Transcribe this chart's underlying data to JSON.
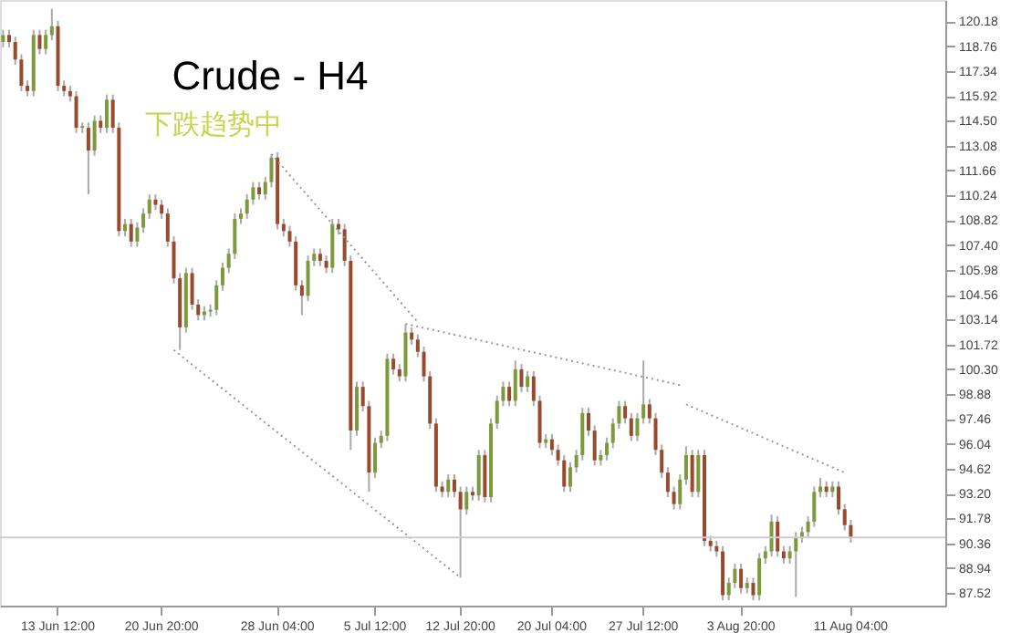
{
  "chart_data": {
    "type": "candlestick",
    "title": "Crude - H4",
    "subtitle": "下跌趋势中",
    "categories": [
      null,
      null,
      null,
      null,
      null,
      null,
      null,
      null,
      null,
      "13 Jun 12:00",
      null,
      null,
      null,
      null,
      null,
      null,
      null,
      null,
      null,
      null,
      null,
      null,
      null,
      null,
      null,
      null,
      "20 Jun 20:00",
      null,
      null,
      null,
      null,
      null,
      null,
      null,
      null,
      null,
      null,
      null,
      null,
      null,
      null,
      null,
      null,
      null,
      null,
      "28 Jun 04:00",
      null,
      null,
      null,
      null,
      null,
      null,
      null,
      null,
      null,
      null,
      null,
      null,
      null,
      null,
      null,
      "5 Jul 12:00",
      null,
      null,
      null,
      null,
      null,
      null,
      null,
      null,
      null,
      null,
      null,
      null,
      null,
      "12 Jul 20:00",
      null,
      null,
      null,
      null,
      null,
      null,
      null,
      null,
      null,
      null,
      null,
      null,
      null,
      null,
      "20 Jul 04:00",
      null,
      null,
      null,
      null,
      null,
      null,
      null,
      null,
      null,
      null,
      null,
      null,
      null,
      null,
      "27 Jul 12:00",
      null,
      null,
      null,
      null,
      null,
      null,
      null,
      null,
      null,
      null,
      null,
      null,
      null,
      null,
      null,
      "3 Aug 20:00",
      null,
      null,
      null,
      null,
      null,
      null,
      null,
      null,
      null,
      null,
      null,
      null,
      null,
      null,
      null,
      null,
      null,
      "11 Aug 04:00",
      null,
      null,
      null,
      null,
      null,
      null,
      null,
      null,
      null,
      null,
      null,
      null,
      null,
      null,
      null
    ],
    "ohlc": [
      [
        119.0,
        119.7,
        118.7,
        119.4
      ],
      [
        119.4,
        119.7,
        118.7,
        119.0
      ],
      [
        119.0,
        119.3,
        117.7,
        118.0
      ],
      [
        118.0,
        118.3,
        116.2,
        116.5
      ],
      [
        116.5,
        116.8,
        115.9,
        116.2
      ],
      [
        116.2,
        119.7,
        115.9,
        119.4
      ],
      [
        119.4,
        119.7,
        118.3,
        118.6
      ],
      [
        118.6,
        119.7,
        118.3,
        119.4
      ],
      [
        119.4,
        120.9,
        119.1,
        119.9
      ],
      [
        119.9,
        120.2,
        116.2,
        116.5
      ],
      [
        116.5,
        116.8,
        115.9,
        116.2
      ],
      [
        116.2,
        116.5,
        115.6,
        115.9
      ],
      [
        115.9,
        116.2,
        113.8,
        114.1
      ],
      [
        114.1,
        114.4,
        113.8,
        114.2
      ],
      [
        114.1,
        114.4,
        110.3,
        112.8
      ],
      [
        112.8,
        114.8,
        112.5,
        114.5
      ],
      [
        114.5,
        114.8,
        113.8,
        114.1
      ],
      [
        114.1,
        116.0,
        113.8,
        115.7
      ],
      [
        115.7,
        116.0,
        113.8,
        114.1
      ],
      [
        114.1,
        114.4,
        107.9,
        108.2
      ],
      [
        108.2,
        108.9,
        107.9,
        108.6
      ],
      [
        108.6,
        108.9,
        107.3,
        107.6
      ],
      [
        107.6,
        108.7,
        107.3,
        108.4
      ],
      [
        108.4,
        109.5,
        108.1,
        109.2
      ],
      [
        109.2,
        110.3,
        108.9,
        110.0
      ],
      [
        110.0,
        110.3,
        109.4,
        109.7
      ],
      [
        109.7,
        110.0,
        108.9,
        109.2
      ],
      [
        109.2,
        109.5,
        107.3,
        107.6
      ],
      [
        107.6,
        107.9,
        105.2,
        105.5
      ],
      [
        105.5,
        105.8,
        101.4,
        102.7
      ],
      [
        102.7,
        106.1,
        102.4,
        105.8
      ],
      [
        105.8,
        106.1,
        103.7,
        104.0
      ],
      [
        104.0,
        104.3,
        103.1,
        103.4
      ],
      [
        103.4,
        103.9,
        103.1,
        103.6
      ],
      [
        103.6,
        104.0,
        103.3,
        103.7
      ],
      [
        103.7,
        105.4,
        103.4,
        105.1
      ],
      [
        105.1,
        106.4,
        104.8,
        106.1
      ],
      [
        106.1,
        107.2,
        105.8,
        106.9
      ],
      [
        106.9,
        109.2,
        106.6,
        108.9
      ],
      [
        108.9,
        109.5,
        108.6,
        109.2
      ],
      [
        109.2,
        110.3,
        108.9,
        110.0
      ],
      [
        110.0,
        111.0,
        109.7,
        110.7
      ],
      [
        110.7,
        111.0,
        110.0,
        110.3
      ],
      [
        110.3,
        111.3,
        110.0,
        111.0
      ],
      [
        111.0,
        112.6,
        110.7,
        112.4
      ],
      [
        112.4,
        112.7,
        108.3,
        108.6
      ],
      [
        108.6,
        108.9,
        107.9,
        108.2
      ],
      [
        108.2,
        108.5,
        107.3,
        107.6
      ],
      [
        107.6,
        107.9,
        104.8,
        105.1
      ],
      [
        105.1,
        105.4,
        103.4,
        104.5
      ],
      [
        104.5,
        106.8,
        104.2,
        106.5
      ],
      [
        106.5,
        107.2,
        106.2,
        106.9
      ],
      [
        106.9,
        107.2,
        106.2,
        106.5
      ],
      [
        106.5,
        106.8,
        105.8,
        106.1
      ],
      [
        106.1,
        108.9,
        105.8,
        108.6
      ],
      [
        108.6,
        108.9,
        108.0,
        108.3
      ],
      [
        108.3,
        108.6,
        106.2,
        106.5
      ],
      [
        106.5,
        106.8,
        95.7,
        96.8
      ],
      [
        96.8,
        99.6,
        96.5,
        99.3
      ],
      [
        99.3,
        99.6,
        97.9,
        98.2
      ],
      [
        98.2,
        98.5,
        93.3,
        94.4
      ],
      [
        94.4,
        96.4,
        94.1,
        96.1
      ],
      [
        96.1,
        96.8,
        95.8,
        96.5
      ],
      [
        96.5,
        101.2,
        96.2,
        100.9
      ],
      [
        100.9,
        101.2,
        100.0,
        100.3
      ],
      [
        100.3,
        100.6,
        99.6,
        99.9
      ],
      [
        99.9,
        102.9,
        99.6,
        102.4
      ],
      [
        102.4,
        102.7,
        101.7,
        102.0
      ],
      [
        102.0,
        102.3,
        101.0,
        101.3
      ],
      [
        101.3,
        101.6,
        99.6,
        99.9
      ],
      [
        99.9,
        100.2,
        96.9,
        97.2
      ],
      [
        97.2,
        97.5,
        93.3,
        93.6
      ],
      [
        93.6,
        93.9,
        93.0,
        93.3
      ],
      [
        93.3,
        94.3,
        93.0,
        94.0
      ],
      [
        94.0,
        94.3,
        93.0,
        93.3
      ],
      [
        93.3,
        93.6,
        88.4,
        92.3
      ],
      [
        92.3,
        93.6,
        92.0,
        93.3
      ],
      [
        93.3,
        93.6,
        92.8,
        93.1
      ],
      [
        93.1,
        95.7,
        92.8,
        95.4
      ],
      [
        95.4,
        95.7,
        92.7,
        93.0
      ],
      [
        93.0,
        97.5,
        92.7,
        97.2
      ],
      [
        97.2,
        98.8,
        96.9,
        98.5
      ],
      [
        98.5,
        99.6,
        98.2,
        99.3
      ],
      [
        99.3,
        99.6,
        98.2,
        98.5
      ],
      [
        98.5,
        100.8,
        98.2,
        100.3
      ],
      [
        100.3,
        100.6,
        99.0,
        99.3
      ],
      [
        99.3,
        100.2,
        99.0,
        99.9
      ],
      [
        99.9,
        100.2,
        98.2,
        98.5
      ],
      [
        98.5,
        98.8,
        95.8,
        96.1
      ],
      [
        96.1,
        96.6,
        95.8,
        96.3
      ],
      [
        96.3,
        96.6,
        95.4,
        95.7
      ],
      [
        95.7,
        96.0,
        94.8,
        95.1
      ],
      [
        95.1,
        95.4,
        93.3,
        93.6
      ],
      [
        93.6,
        95.0,
        93.3,
        94.7
      ],
      [
        94.7,
        95.7,
        94.4,
        95.4
      ],
      [
        95.4,
        98.1,
        95.1,
        97.8
      ],
      [
        97.8,
        98.1,
        96.5,
        96.8
      ],
      [
        96.8,
        97.1,
        94.8,
        95.1
      ],
      [
        95.1,
        95.7,
        94.8,
        95.4
      ],
      [
        95.4,
        96.4,
        95.1,
        96.1
      ],
      [
        96.1,
        97.5,
        95.8,
        97.2
      ],
      [
        97.2,
        98.5,
        96.9,
        98.2
      ],
      [
        98.2,
        98.5,
        97.2,
        97.5
      ],
      [
        97.5,
        97.8,
        96.2,
        96.5
      ],
      [
        96.5,
        97.8,
        96.2,
        97.5
      ],
      [
        97.5,
        100.8,
        97.2,
        98.3
      ],
      [
        98.3,
        98.6,
        97.2,
        97.5
      ],
      [
        97.5,
        97.8,
        95.4,
        95.7
      ],
      [
        95.7,
        96.0,
        94.1,
        94.4
      ],
      [
        94.4,
        94.7,
        93.0,
        93.3
      ],
      [
        93.3,
        93.6,
        92.3,
        92.6
      ],
      [
        92.6,
        94.3,
        92.3,
        94.0
      ],
      [
        94.0,
        95.9,
        93.7,
        95.4
      ],
      [
        95.4,
        95.7,
        93.0,
        93.3
      ],
      [
        93.3,
        95.7,
        93.0,
        95.4
      ],
      [
        95.4,
        95.7,
        90.2,
        90.5
      ],
      [
        90.5,
        90.8,
        89.9,
        90.2
      ],
      [
        90.2,
        90.5,
        89.6,
        89.9
      ],
      [
        89.9,
        90.2,
        87.1,
        87.4
      ],
      [
        87.4,
        88.4,
        87.1,
        88.1
      ],
      [
        88.1,
        89.2,
        87.8,
        88.9
      ],
      [
        88.9,
        89.2,
        87.5,
        87.8
      ],
      [
        87.8,
        88.4,
        87.5,
        88.1
      ],
      [
        88.1,
        88.4,
        87.1,
        87.4
      ],
      [
        87.4,
        89.8,
        87.1,
        89.5
      ],
      [
        89.5,
        90.2,
        89.2,
        89.9
      ],
      [
        89.9,
        92.0,
        89.6,
        91.6
      ],
      [
        91.6,
        91.9,
        89.6,
        89.9
      ],
      [
        89.9,
        90.2,
        89.2,
        89.5
      ],
      [
        89.5,
        90.2,
        89.2,
        89.9
      ],
      [
        89.9,
        91.0,
        87.3,
        90.7
      ],
      [
        90.7,
        91.3,
        90.4,
        91.0
      ],
      [
        91.0,
        91.9,
        90.7,
        91.6
      ],
      [
        91.6,
        93.6,
        91.3,
        93.3
      ],
      [
        93.3,
        94.1,
        93.0,
        93.6
      ],
      [
        93.6,
        93.9,
        93.0,
        93.3
      ],
      [
        93.3,
        93.9,
        93.0,
        93.6
      ],
      [
        93.6,
        93.9,
        92.0,
        92.3
      ],
      [
        92.3,
        92.6,
        91.1,
        91.4
      ],
      [
        91.4,
        91.7,
        90.4,
        90.7
      ],
      null,
      null,
      null,
      null,
      null,
      null,
      null,
      null,
      null,
      null,
      null,
      null,
      null,
      null,
      null
    ],
    "colors": [
      "#7d9a3a",
      "#9a4a2c",
      "#9a4a2c",
      "#9a4a2c",
      "#9a4a2c",
      "#7d9a3a",
      "#9a4a2c",
      "#7d9a3a",
      "#7d9a3a",
      "#9a4a2c",
      "#9a4a2c",
      "#9a4a2c",
      "#9a4a2c",
      "#7d9a3a",
      "#9a4a2c",
      "#7d9a3a",
      "#9a4a2c",
      "#7d9a3a",
      "#9a4a2c",
      "#9a4a2c",
      "#7d9a3a",
      "#9a4a2c",
      "#7d9a3a",
      "#7d9a3a",
      "#7d9a3a",
      "#9a4a2c",
      "#9a4a2c",
      "#9a4a2c",
      "#9a4a2c",
      "#9a4a2c",
      "#7d9a3a",
      "#9a4a2c",
      "#9a4a2c",
      "#7d9a3a",
      "#7d9a3a",
      "#7d9a3a",
      "#7d9a3a",
      "#7d9a3a",
      "#7d9a3a",
      "#7d9a3a",
      "#7d9a3a",
      "#7d9a3a",
      "#9a4a2c",
      "#7d9a3a",
      "#7d9a3a",
      "#9a4a2c",
      "#9a4a2c",
      "#9a4a2c",
      "#9a4a2c",
      "#9a4a2c",
      "#7d9a3a",
      "#7d9a3a",
      "#9a4a2c",
      "#9a4a2c",
      "#7d9a3a",
      "#9a4a2c",
      "#9a4a2c",
      "#9a4a2c",
      "#7d9a3a",
      "#9a4a2c",
      "#9a4a2c",
      "#7d9a3a",
      "#7d9a3a",
      "#7d9a3a",
      "#9a4a2c",
      "#9a4a2c",
      "#7d9a3a",
      "#9a4a2c",
      "#9a4a2c",
      "#9a4a2c",
      "#9a4a2c",
      "#9a4a2c",
      "#9a4a2c",
      "#7d9a3a",
      "#9a4a2c",
      "#9a4a2c",
      "#7d9a3a",
      "#9a4a2c",
      "#7d9a3a",
      "#9a4a2c",
      "#7d9a3a",
      "#7d9a3a",
      "#7d9a3a",
      "#9a4a2c",
      "#7d9a3a",
      "#9a4a2c",
      "#7d9a3a",
      "#9a4a2c",
      "#9a4a2c",
      "#7d9a3a",
      "#9a4a2c",
      "#9a4a2c",
      "#9a4a2c",
      "#7d9a3a",
      "#7d9a3a",
      "#7d9a3a",
      "#9a4a2c",
      "#9a4a2c",
      "#7d9a3a",
      "#7d9a3a",
      "#7d9a3a",
      "#7d9a3a",
      "#9a4a2c",
      "#9a4a2c",
      "#7d9a3a",
      "#7d9a3a",
      "#9a4a2c",
      "#9a4a2c",
      "#9a4a2c",
      "#9a4a2c",
      "#9a4a2c",
      "#7d9a3a",
      "#7d9a3a",
      "#9a4a2c",
      "#7d9a3a",
      "#9a4a2c",
      "#9a4a2c",
      "#9a4a2c",
      "#9a4a2c",
      "#7d9a3a",
      "#7d9a3a",
      "#9a4a2c",
      "#7d9a3a",
      "#9a4a2c",
      "#7d9a3a",
      "#7d9a3a",
      "#7d9a3a",
      "#9a4a2c",
      "#9a4a2c",
      "#7d9a3a",
      "#7d9a3a",
      "#7d9a3a",
      "#7d9a3a",
      "#7d9a3a",
      "#7d9a3a",
      "#9a4a2c",
      "#7d9a3a",
      "#9a4a2c",
      "#9a4a2c",
      "#9a4a2c",
      null,
      null,
      null,
      null,
      null,
      null,
      null,
      null,
      null,
      null,
      null,
      null,
      null,
      null,
      null
    ],
    "series": [
      {
        "type": "line",
        "color": "#999999",
        "line_style": "dotted",
        "values": [
          null,
          null,
          null,
          null,
          null,
          null,
          null,
          null,
          null,
          null,
          null,
          null,
          null,
          null,
          null,
          null,
          null,
          null,
          null,
          null,
          null,
          null,
          null,
          null,
          null,
          null,
          null,
          null,
          null,
          null,
          null,
          null,
          null,
          null,
          null,
          null,
          null,
          null,
          null,
          null,
          null,
          null,
          null,
          null,
          112.6,
          null,
          null,
          null,
          null,
          null,
          null,
          null,
          null,
          null,
          null,
          null,
          null,
          null,
          null,
          null,
          null,
          null,
          null,
          null,
          null,
          null,
          null,
          null,
          103.0,
          null,
          null,
          null,
          null,
          null,
          null,
          null,
          null,
          null,
          null,
          null,
          null,
          null,
          null,
          null,
          null,
          null,
          null,
          null,
          null,
          null,
          null,
          null,
          null,
          null,
          null,
          null,
          null,
          null,
          null,
          null,
          null,
          null,
          null,
          null,
          null,
          null,
          null,
          null,
          null,
          null,
          null,
          null,
          null,
          null,
          null,
          null,
          null,
          null,
          null,
          null,
          null,
          null,
          null,
          null,
          null,
          null,
          null,
          null,
          null,
          null,
          null,
          null,
          null,
          null,
          null,
          null,
          null,
          null,
          null,
          null,
          null,
          null,
          null,
          null,
          null,
          null,
          null,
          null,
          null,
          null,
          null,
          null,
          null,
          null,
          null
        ]
      },
      {
        "type": "line",
        "color": "#999999",
        "line_style": "dotted",
        "values": [
          null,
          null,
          null,
          null,
          null,
          null,
          null,
          null,
          null,
          null,
          null,
          null,
          null,
          null,
          null,
          null,
          null,
          null,
          null,
          null,
          null,
          null,
          null,
          null,
          null,
          null,
          null,
          null,
          101.4,
          null,
          null,
          null,
          null,
          null,
          null,
          null,
          null,
          null,
          null,
          null,
          null,
          null,
          null,
          null,
          null,
          null,
          null,
          null,
          null,
          null,
          null,
          null,
          null,
          null,
          null,
          null,
          null,
          null,
          null,
          null,
          null,
          null,
          null,
          null,
          null,
          null,
          null,
          null,
          null,
          null,
          null,
          null,
          null,
          null,
          null,
          88.4,
          null,
          null,
          null,
          null,
          null,
          null,
          null,
          null,
          null,
          null,
          null,
          null,
          null,
          null,
          null,
          null,
          null,
          null,
          null,
          null,
          null,
          null,
          null,
          null,
          null,
          null,
          null,
          null,
          null,
          null,
          null,
          null,
          null,
          null,
          null,
          null,
          null,
          null,
          null,
          null,
          null,
          null,
          null,
          null,
          null,
          null,
          null,
          null,
          null,
          null,
          null,
          null,
          null,
          null,
          null,
          null,
          null,
          null,
          null,
          null,
          null,
          null,
          null,
          null,
          null,
          null,
          null,
          null,
          null,
          null,
          null,
          null,
          null,
          null,
          null,
          null,
          null,
          null,
          null
        ]
      },
      {
        "type": "line",
        "color": "#999999",
        "line_style": "dotted",
        "values": [
          null,
          null,
          null,
          null,
          null,
          null,
          null,
          null,
          null,
          null,
          null,
          null,
          null,
          null,
          null,
          null,
          null,
          null,
          null,
          null,
          null,
          null,
          null,
          null,
          null,
          null,
          null,
          null,
          null,
          null,
          null,
          null,
          null,
          null,
          null,
          null,
          null,
          null,
          null,
          null,
          null,
          null,
          null,
          null,
          null,
          null,
          null,
          null,
          null,
          null,
          null,
          null,
          null,
          null,
          null,
          null,
          null,
          null,
          null,
          null,
          null,
          null,
          null,
          null,
          null,
          null,
          102.9,
          null,
          null,
          null,
          null,
          null,
          null,
          null,
          null,
          null,
          null,
          null,
          null,
          null,
          null,
          null,
          null,
          null,
          null,
          null,
          null,
          null,
          null,
          null,
          null,
          null,
          null,
          null,
          null,
          null,
          null,
          null,
          null,
          null,
          null,
          null,
          null,
          null,
          null,
          null,
          null,
          null,
          null,
          null,
          null,
          99.4,
          null,
          null,
          null,
          null,
          null,
          null,
          null,
          null,
          null,
          null,
          null,
          null,
          null,
          null,
          null,
          null,
          null,
          null,
          null,
          null,
          null,
          null,
          null,
          null,
          null,
          null,
          null,
          null,
          null,
          null,
          null,
          null,
          null,
          null,
          null,
          null,
          null,
          null,
          null,
          null,
          null,
          null,
          null
        ]
      },
      {
        "type": "line",
        "color": "#999999",
        "line_style": "dotted",
        "values": [
          null,
          null,
          null,
          null,
          null,
          null,
          null,
          null,
          null,
          null,
          null,
          null,
          null,
          null,
          null,
          null,
          null,
          null,
          null,
          null,
          null,
          null,
          null,
          null,
          null,
          null,
          null,
          null,
          null,
          null,
          null,
          null,
          null,
          null,
          null,
          null,
          null,
          null,
          null,
          null,
          null,
          null,
          null,
          null,
          null,
          null,
          null,
          null,
          null,
          null,
          null,
          null,
          null,
          null,
          null,
          null,
          null,
          null,
          null,
          null,
          null,
          null,
          null,
          null,
          null,
          null,
          null,
          null,
          null,
          null,
          null,
          null,
          null,
          null,
          null,
          null,
          null,
          null,
          null,
          null,
          null,
          null,
          null,
          null,
          null,
          null,
          null,
          null,
          null,
          null,
          null,
          null,
          null,
          null,
          null,
          null,
          null,
          null,
          null,
          null,
          null,
          null,
          null,
          null,
          null,
          null,
          null,
          null,
          null,
          null,
          null,
          null,
          98.3,
          null,
          null,
          null,
          null,
          null,
          null,
          null,
          null,
          null,
          null,
          null,
          null,
          null,
          null,
          null,
          null,
          null,
          null,
          null,
          null,
          null,
          null,
          null,
          null,
          null,
          94.4,
          null,
          null,
          null,
          null,
          null,
          null,
          null,
          null,
          null,
          null,
          null,
          null,
          null,
          null,
          null,
          null
        ]
      }
    ],
    "ref_lines": [
      {
        "axis": "y",
        "value": 90.7,
        "color": "#cccccc"
      }
    ],
    "ylim": [
      86.8,
      121.4
    ],
    "yticks": [
      87.52,
      88.94,
      90.36,
      91.78,
      {
        "value": 93.2,
        "label": "93.20"
      },
      94.62,
      96.04,
      97.46,
      98.88,
      {
        "value": 100.3,
        "label": "100.30"
      },
      101.72,
      103.14,
      104.56,
      105.98,
      {
        "value": 107.4,
        "label": "107.40"
      },
      108.82,
      110.24,
      111.66,
      113.08,
      {
        "value": 114.5,
        "label": "114.50"
      },
      115.92,
      117.34,
      118.76,
      120.18
    ],
    "grid": false
  }
}
